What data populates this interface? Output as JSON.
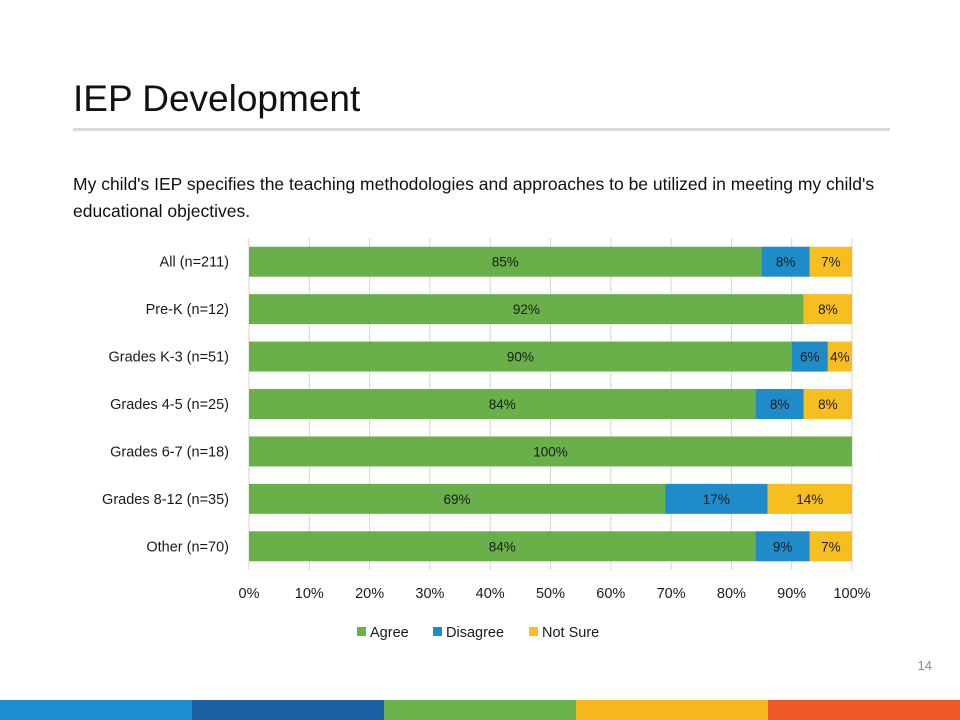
{
  "slide": {
    "title": "IEP Development",
    "subtitle": "My child's IEP specifies the teaching methodologies and approaches to be utilized in meeting my child's educational objectives.",
    "page_number": "14",
    "footer_colors": [
      "#1c8ed1",
      "#1d5fa5",
      "#6ab34a",
      "#f6b81e",
      "#f05a2a"
    ]
  },
  "chart_data": {
    "type": "bar",
    "orientation": "horizontal",
    "stacked": true,
    "percent_stacked": true,
    "categories": [
      "All (n=211)",
      "Pre-K (n=12)",
      "Grades K-3 (n=51)",
      "Grades 4-5 (n=25)",
      "Grades 6-7 (n=18)",
      "Grades 8-12 (n=35)",
      "Other (n=70)"
    ],
    "series": [
      {
        "name": "Agree",
        "color": "#6ab04a",
        "values": [
          85,
          92,
          90,
          84,
          100,
          69,
          84
        ],
        "labels": [
          "85%",
          "92%",
          "90%",
          "84%",
          "100%",
          "69%",
          "84%"
        ]
      },
      {
        "name": "Disagree",
        "color": "#1f8bc9",
        "values": [
          8,
          0,
          6,
          8,
          0,
          17,
          9
        ],
        "labels": [
          "8%",
          "",
          "6%",
          "8%",
          "",
          "17%",
          "9%"
        ]
      },
      {
        "name": "Not Sure",
        "color": "#f6be1f",
        "values": [
          7,
          8,
          4,
          8,
          0,
          14,
          7
        ],
        "labels": [
          "7%",
          "8%",
          "4%",
          "8%",
          "",
          "14%",
          "7%"
        ]
      }
    ],
    "x_ticks": [
      "0%",
      "10%",
      "20%",
      "30%",
      "40%",
      "50%",
      "60%",
      "70%",
      "80%",
      "90%",
      "100%"
    ],
    "xlim": [
      0,
      100
    ],
    "grid": true,
    "legend": "bottom"
  }
}
